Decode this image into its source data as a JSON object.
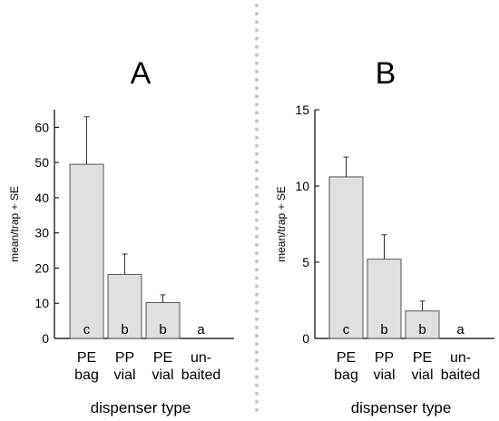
{
  "figure": {
    "divider_color": "#c8c8c8",
    "bar_fill": "#e0e0e0",
    "bar_stroke": "#555555"
  },
  "chart_data": [
    {
      "type": "bar",
      "title": "A",
      "categories": [
        "PE bag",
        "PP vial",
        "PE vial",
        "un-baited"
      ],
      "category_lines": [
        [
          "PE",
          "bag"
        ],
        [
          "PP",
          "vial"
        ],
        [
          "PE",
          "vial"
        ],
        [
          "un-",
          "baited"
        ]
      ],
      "values": [
        49.5,
        18.2,
        10.2,
        0
      ],
      "errors": [
        13.5,
        5.8,
        2.2,
        0
      ],
      "letters": [
        "c",
        "b",
        "b",
        "a"
      ],
      "ylabel": "mean/trap + SE",
      "xlabel": "dispenser type",
      "ylim": [
        0,
        65
      ],
      "yticks": [
        0,
        10,
        20,
        30,
        40,
        50,
        60
      ],
      "grid": false
    },
    {
      "type": "bar",
      "title": "B",
      "categories": [
        "PE bag",
        "PP vial",
        "PE vial",
        "un-baited"
      ],
      "category_lines": [
        [
          "PE",
          "bag"
        ],
        [
          "PP",
          "vial"
        ],
        [
          "PE",
          "vial"
        ],
        [
          "un-",
          "baited"
        ]
      ],
      "values": [
        10.6,
        5.2,
        1.8,
        0
      ],
      "errors": [
        1.3,
        1.6,
        0.65,
        0
      ],
      "letters": [
        "c",
        "b",
        "b",
        "a"
      ],
      "ylabel": "mean/trap + SE",
      "xlabel": "dispenser type",
      "ylim": [
        0,
        15
      ],
      "yticks": [
        0,
        5,
        10,
        15
      ],
      "grid": false
    }
  ]
}
